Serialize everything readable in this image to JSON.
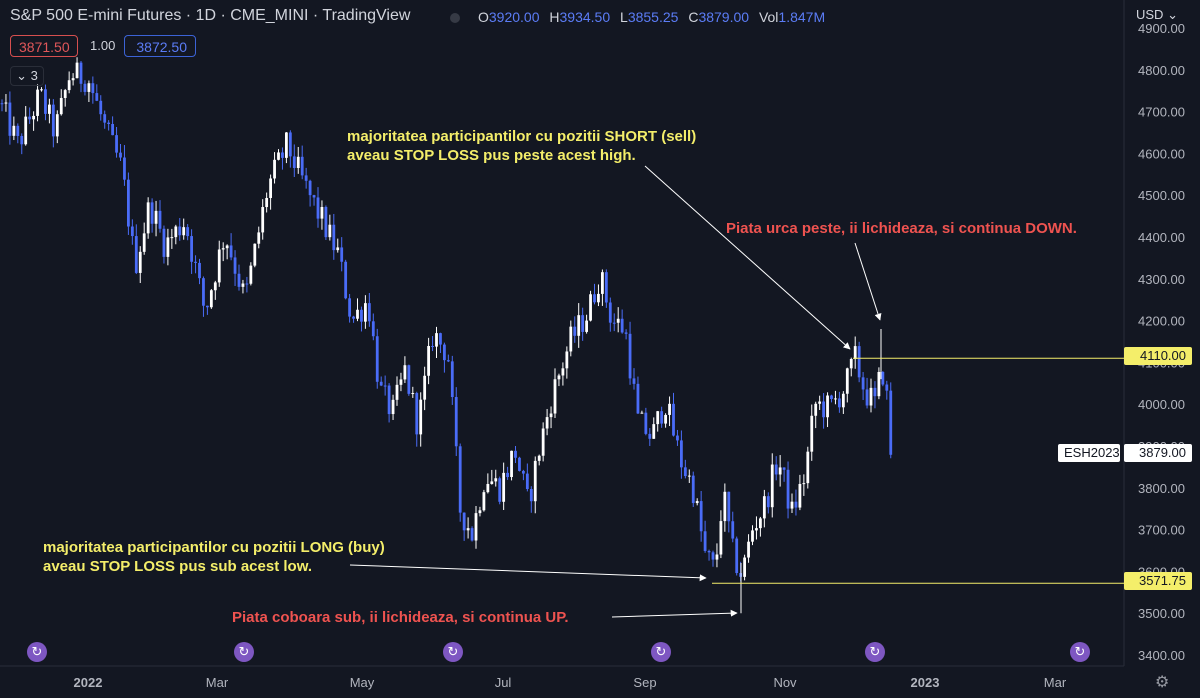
{
  "header": {
    "title": "S&P 500 E-mini Futures · 1D · CME_MINI · TradingView",
    "ohlc": [
      {
        "key": "O",
        "value": "3920.00"
      },
      {
        "key": "H",
        "value": "3934.50"
      },
      {
        "key": "L",
        "value": "3855.25"
      },
      {
        "key": "C",
        "value": "3879.00"
      },
      {
        "key": "Vol",
        "value": "1.847M"
      }
    ],
    "bid": "3871.50",
    "spread": "1.00",
    "ask": "3872.50",
    "indicators_count": "3",
    "currency": "USD"
  },
  "colors": {
    "background": "#131722",
    "candle_up": "#ffffff",
    "candle_down": "#4a6cf7",
    "annotation_yellow": "#f4ee6a",
    "annotation_red": "#ef5350",
    "level_line": "#f4ee6a",
    "sync_icon": "#7e57c2"
  },
  "annotations": {
    "short_stops": "majoritatea participantilor cu pozitii SHORT (sell)\naveau STOP LOSS pus peste acest high.",
    "breakout_down": "Piata urca peste, ii lichideaza, si continua DOWN.",
    "long_stops": "majoritatea participantilor cu pozitii LONG (buy)\naveau STOP LOSS pus sub acest low.",
    "breakdown_up": "Piata coboara sub, ii lichideaza, si continua UP."
  },
  "levels": {
    "high": "4110.00",
    "low": "3571.75",
    "last": "3879.00",
    "symbol": "ESH2023"
  },
  "sync_icon": "sync-icon",
  "settings_icon": "gear-icon",
  "chart_data": {
    "type": "candlestick",
    "title": "S&P 500 E-mini Futures · 1D · CME_MINI · TradingView",
    "x_labels": [
      "2022",
      "Mar",
      "May",
      "Jul",
      "Sep",
      "Nov",
      "2023",
      "Mar"
    ],
    "y_ticks": [
      3400,
      3500,
      3600,
      3700,
      3800,
      3900,
      4000,
      4100,
      4200,
      4300,
      4400,
      4500,
      4600,
      4700,
      4800,
      4900
    ],
    "y_tick_labels": [
      "3400.00",
      "3500.00",
      "3600.00",
      "3700.00",
      "3800.00",
      "3900.00",
      "4000.00",
      "4100.00",
      "4200.00",
      "4300.00",
      "4400.00",
      "4500.00",
      "4600.00",
      "4700.00",
      "4800.00",
      "4900.00"
    ],
    "ylim": [
      3360,
      4920
    ],
    "grid": false,
    "price_path": [
      [
        0,
        4720
      ],
      [
        18,
        4620
      ],
      [
        40,
        4740
      ],
      [
        55,
        4650
      ],
      [
        70,
        4790
      ],
      [
        88,
        4780
      ],
      [
        105,
        4660
      ],
      [
        122,
        4560
      ],
      [
        135,
        4330
      ],
      [
        150,
        4480
      ],
      [
        165,
        4380
      ],
      [
        185,
        4440
      ],
      [
        205,
        4220
      ],
      [
        225,
        4410
      ],
      [
        245,
        4250
      ],
      [
        268,
        4520
      ],
      [
        287,
        4620
      ],
      [
        305,
        4520
      ],
      [
        322,
        4440
      ],
      [
        338,
        4360
      ],
      [
        352,
        4200
      ],
      [
        368,
        4250
      ],
      [
        380,
        4030
      ],
      [
        393,
        3980
      ],
      [
        405,
        4080
      ],
      [
        418,
        3950
      ],
      [
        433,
        4170
      ],
      [
        448,
        4120
      ],
      [
        460,
        3750
      ],
      [
        472,
        3690
      ],
      [
        485,
        3830
      ],
      [
        500,
        3800
      ],
      [
        515,
        3890
      ],
      [
        528,
        3760
      ],
      [
        540,
        3900
      ],
      [
        552,
        4020
      ],
      [
        570,
        4150
      ],
      [
        588,
        4220
      ],
      [
        600,
        4310
      ],
      [
        612,
        4200
      ],
      [
        625,
        4180
      ],
      [
        638,
        3960
      ],
      [
        652,
        3920
      ],
      [
        665,
        4010
      ],
      [
        680,
        3870
      ],
      [
        693,
        3800
      ],
      [
        705,
        3640
      ],
      [
        715,
        3600
      ],
      [
        723,
        3790
      ],
      [
        733,
        3640
      ],
      [
        742,
        3590
      ],
      [
        752,
        3700
      ],
      [
        765,
        3760
      ],
      [
        778,
        3870
      ],
      [
        792,
        3740
      ],
      [
        805,
        3830
      ],
      [
        815,
        4000
      ],
      [
        830,
        3990
      ],
      [
        845,
        4040
      ],
      [
        855,
        4110
      ],
      [
        865,
        4030
      ],
      [
        875,
        4000
      ],
      [
        882,
        4090
      ],
      [
        890,
        3960
      ],
      [
        893,
        3879
      ]
    ],
    "levels": [
      {
        "label": "high",
        "value": 4110.0
      },
      {
        "label": "low",
        "value": 3571.75
      }
    ],
    "last_price": 3879.0,
    "marked_extremes": [
      {
        "label": "high",
        "value": 4180
      },
      {
        "label": "low",
        "value": 3500
      }
    ]
  }
}
